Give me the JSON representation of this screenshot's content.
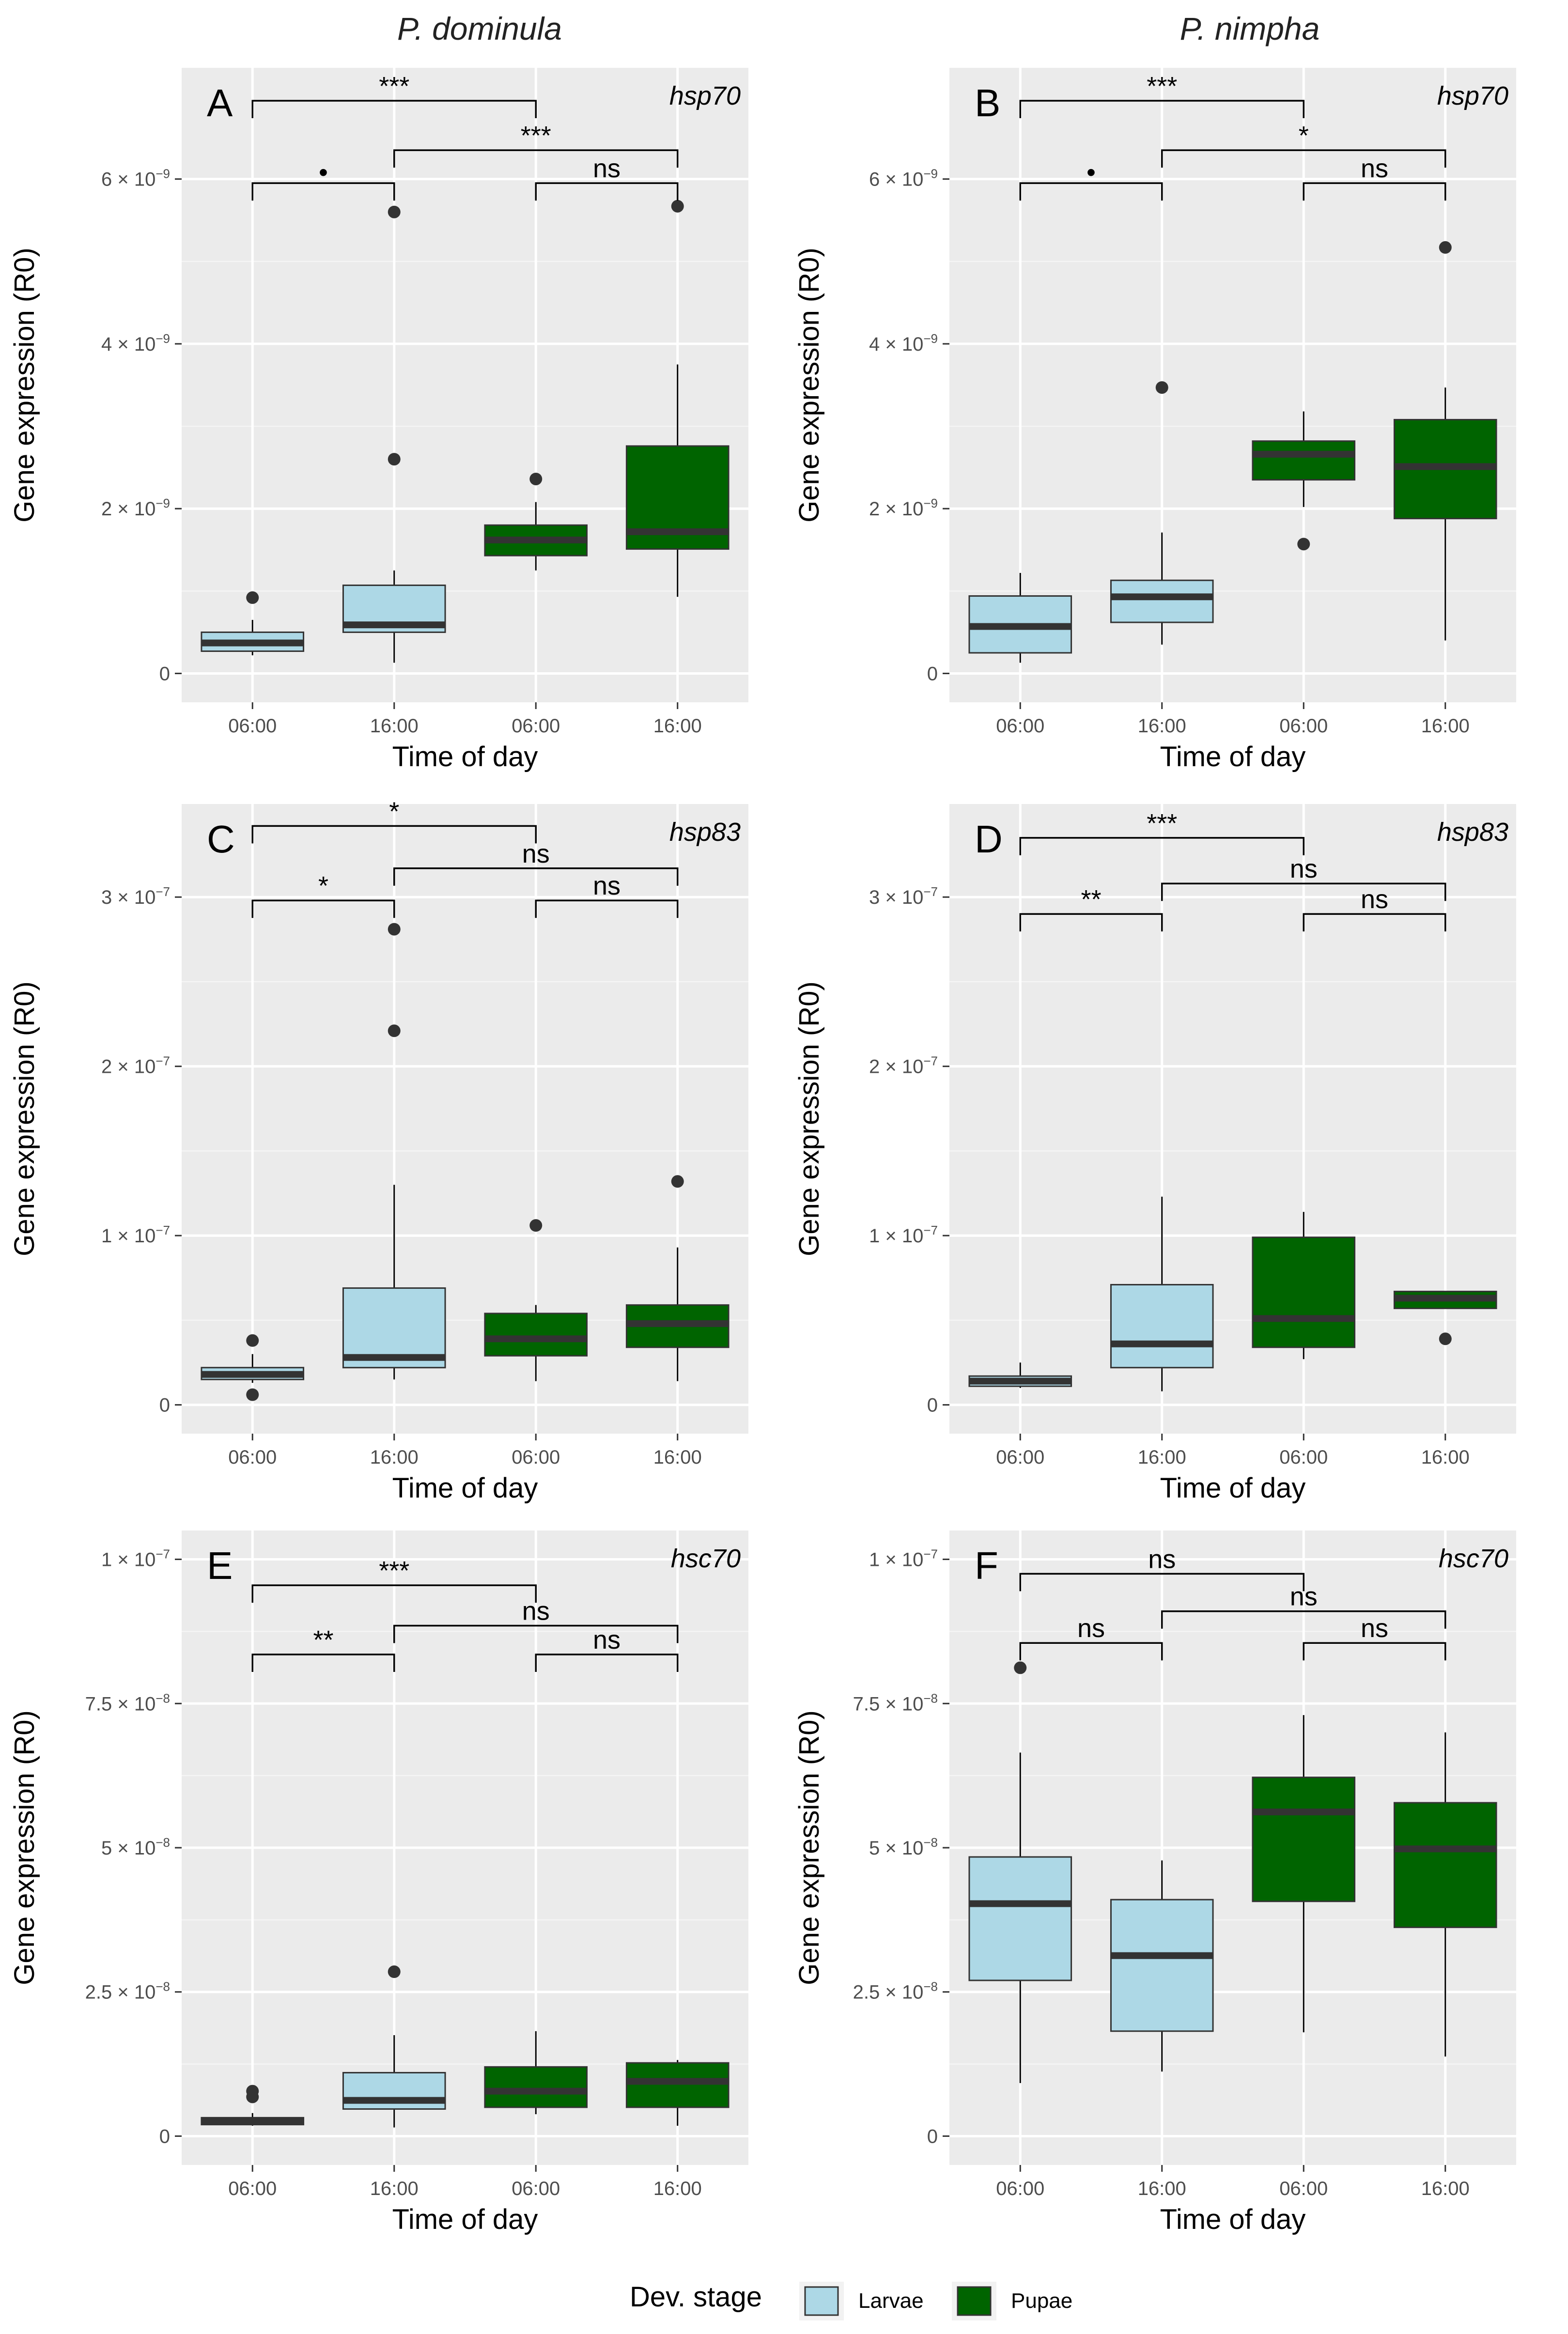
{
  "column_titles": [
    "P. dominula",
    "P. nimpha"
  ],
  "legend": {
    "title": "Dev. stage",
    "items": [
      {
        "label": "Larvae",
        "color": "#add8e6"
      },
      {
        "label": "Pupae",
        "color": "#006400"
      }
    ]
  },
  "colors": {
    "Larvae": "#add8e6",
    "Pupae": "#006400",
    "panel_bg": "#ebebeb"
  },
  "chart_data": [
    {
      "panel": "A",
      "gene": "hsp70",
      "species": "P. dominula",
      "type": "box",
      "xlabel": "Time of day",
      "ylabel": "Gene expression (R0)",
      "categories": [
        "06:00",
        "16:00",
        "06:00",
        "16:00"
      ],
      "groups": [
        "Larvae",
        "Larvae",
        "Pupae",
        "Pupae"
      ],
      "ylim": [
        -3.5e-10,
        7.35e-09
      ],
      "yticks": [
        {
          "v": 0,
          "m": "0",
          "e": ""
        },
        {
          "v": 2e-09,
          "m": "2 × 10",
          "e": "−9"
        },
        {
          "v": 4e-09,
          "m": "4 × 10",
          "e": "−9"
        },
        {
          "v": 6e-09,
          "m": "6 × 10",
          "e": "−9"
        }
      ],
      "boxes": [
        {
          "min": 2.2e-10,
          "q1": 2.7e-10,
          "median": 3.7e-10,
          "q3": 5e-10,
          "max": 6.5e-10,
          "outliers": [
            9.2e-10
          ]
        },
        {
          "min": 1.3e-10,
          "q1": 5e-10,
          "median": 5.9e-10,
          "q3": 1.07e-09,
          "max": 1.25e-09,
          "outliers": [
            5.6e-09,
            2.6e-09
          ]
        },
        {
          "min": 1.25e-09,
          "q1": 1.43e-09,
          "median": 1.62e-09,
          "q3": 1.8e-09,
          "max": 2.08e-09,
          "outliers": [
            2.36e-09
          ]
        },
        {
          "min": 9.3e-10,
          "q1": 1.51e-09,
          "median": 1.72e-09,
          "q3": 2.76e-09,
          "max": 3.75e-09,
          "outliers": [
            5.67e-09
          ]
        }
      ],
      "comparisons": [
        {
          "from": 0,
          "to": 2,
          "y": 6.95e-09,
          "label": "***"
        },
        {
          "from": 1,
          "to": 3,
          "y": 6.35e-09,
          "label": "***"
        },
        {
          "from": 0,
          "to": 1,
          "y": 5.95e-09,
          "label": "•"
        },
        {
          "from": 2,
          "to": 3,
          "y": 5.95e-09,
          "label": "ns"
        }
      ]
    },
    {
      "panel": "B",
      "gene": "hsp70",
      "species": "P. nimpha",
      "type": "box",
      "xlabel": "Time of day",
      "ylabel": "Gene expression (R0)",
      "categories": [
        "06:00",
        "16:00",
        "06:00",
        "16:00"
      ],
      "groups": [
        "Larvae",
        "Larvae",
        "Pupae",
        "Pupae"
      ],
      "ylim": [
        -3.5e-10,
        7.35e-09
      ],
      "yticks": [
        {
          "v": 0,
          "m": "0",
          "e": ""
        },
        {
          "v": 2e-09,
          "m": "2 × 10",
          "e": "−9"
        },
        {
          "v": 4e-09,
          "m": "4 × 10",
          "e": "−9"
        },
        {
          "v": 6e-09,
          "m": "6 × 10",
          "e": "−9"
        }
      ],
      "boxes": [
        {
          "min": 1.3e-10,
          "q1": 2.5e-10,
          "median": 5.7e-10,
          "q3": 9.4e-10,
          "max": 1.22e-09,
          "outliers": []
        },
        {
          "min": 3.5e-10,
          "q1": 6.2e-10,
          "median": 9.3e-10,
          "q3": 1.13e-09,
          "max": 1.71e-09,
          "outliers": [
            3.47e-09
          ]
        },
        {
          "min": 2.02e-09,
          "q1": 2.35e-09,
          "median": 2.66e-09,
          "q3": 2.82e-09,
          "max": 3.18e-09,
          "outliers": [
            1.57e-09
          ]
        },
        {
          "min": 4e-10,
          "q1": 1.88e-09,
          "median": 2.51e-09,
          "q3": 3.08e-09,
          "max": 3.47e-09,
          "outliers": [
            5.17e-09
          ]
        }
      ],
      "comparisons": [
        {
          "from": 0,
          "to": 2,
          "y": 6.95e-09,
          "label": "***"
        },
        {
          "from": 1,
          "to": 3,
          "y": 6.35e-09,
          "label": "*"
        },
        {
          "from": 0,
          "to": 1,
          "y": 5.95e-09,
          "label": "•"
        },
        {
          "from": 2,
          "to": 3,
          "y": 5.95e-09,
          "label": "ns"
        }
      ]
    },
    {
      "panel": "C",
      "gene": "hsp83",
      "species": "P. dominula",
      "type": "box",
      "xlabel": "Time of day",
      "ylabel": "Gene expression (R0)",
      "categories": [
        "06:00",
        "16:00",
        "06:00",
        "16:00"
      ],
      "groups": [
        "Larvae",
        "Larvae",
        "Pupae",
        "Pupae"
      ],
      "ylim": [
        -1.7e-08,
        3.55e-07
      ],
      "yticks": [
        {
          "v": 0,
          "m": "0",
          "e": ""
        },
        {
          "v": 1e-07,
          "m": "1 × 10",
          "e": "−7"
        },
        {
          "v": 2e-07,
          "m": "2 × 10",
          "e": "−7"
        },
        {
          "v": 3e-07,
          "m": "3 × 10",
          "e": "−7"
        }
      ],
      "boxes": [
        {
          "min": 1.3e-08,
          "q1": 1.5e-08,
          "median": 1.8e-08,
          "q3": 2.2e-08,
          "max": 3e-08,
          "outliers": [
            3.8e-08,
            6e-09
          ]
        },
        {
          "min": 1.5e-08,
          "q1": 2.2e-08,
          "median": 2.8e-08,
          "q3": 6.9e-08,
          "max": 1.3e-07,
          "outliers": [
            2.81e-07,
            2.21e-07
          ]
        },
        {
          "min": 1.4e-08,
          "q1": 2.9e-08,
          "median": 3.9e-08,
          "q3": 5.4e-08,
          "max": 5.9e-08,
          "outliers": [
            1.06e-07
          ]
        },
        {
          "min": 1.4e-08,
          "q1": 3.4e-08,
          "median": 4.8e-08,
          "q3": 5.9e-08,
          "max": 9.3e-08,
          "outliers": [
            1.32e-07
          ]
        }
      ],
      "comparisons": [
        {
          "from": 0,
          "to": 2,
          "y": 3.42e-07,
          "label": "*"
        },
        {
          "from": 1,
          "to": 3,
          "y": 3.17e-07,
          "label": "ns"
        },
        {
          "from": 0,
          "to": 1,
          "y": 2.98e-07,
          "label": "*"
        },
        {
          "from": 2,
          "to": 3,
          "y": 2.98e-07,
          "label": "ns"
        }
      ]
    },
    {
      "panel": "D",
      "gene": "hsp83",
      "species": "P. nimpha",
      "type": "box",
      "xlabel": "Time of day",
      "ylabel": "Gene expression (R0)",
      "categories": [
        "06:00",
        "16:00",
        "06:00",
        "16:00"
      ],
      "groups": [
        "Larvae",
        "Larvae",
        "Pupae",
        "Pupae"
      ],
      "ylim": [
        -1.7e-08,
        3.55e-07
      ],
      "yticks": [
        {
          "v": 0,
          "m": "0",
          "e": ""
        },
        {
          "v": 1e-07,
          "m": "1 × 10",
          "e": "−7"
        },
        {
          "v": 2e-07,
          "m": "2 × 10",
          "e": "−7"
        },
        {
          "v": 3e-07,
          "m": "3 × 10",
          "e": "−7"
        }
      ],
      "boxes": [
        {
          "min": 1e-08,
          "q1": 1.1e-08,
          "median": 1.4e-08,
          "q3": 1.7e-08,
          "max": 2.5e-08,
          "outliers": []
        },
        {
          "min": 8e-09,
          "q1": 2.2e-08,
          "median": 3.6e-08,
          "q3": 7.1e-08,
          "max": 1.23e-07,
          "outliers": []
        },
        {
          "min": 2.7e-08,
          "q1": 3.4e-08,
          "median": 5.1e-08,
          "q3": 9.9e-08,
          "max": 1.14e-07,
          "outliers": []
        },
        {
          "min": 5.7e-08,
          "q1": 5.7e-08,
          "median": 6.3e-08,
          "q3": 6.7e-08,
          "max": 6.7e-08,
          "outliers": [
            3.9e-08
          ]
        }
      ],
      "comparisons": [
        {
          "from": 0,
          "to": 2,
          "y": 3.35e-07,
          "label": "***"
        },
        {
          "from": 1,
          "to": 3,
          "y": 3.08e-07,
          "label": "ns"
        },
        {
          "from": 0,
          "to": 1,
          "y": 2.9e-07,
          "label": "**"
        },
        {
          "from": 2,
          "to": 3,
          "y": 2.9e-07,
          "label": "ns"
        }
      ]
    },
    {
      "panel": "E",
      "gene": "hsc70",
      "species": "P. dominula",
      "type": "box",
      "xlabel": "Time of day",
      "ylabel": "Gene expression (R0)",
      "categories": [
        "06:00",
        "16:00",
        "06:00",
        "16:00"
      ],
      "groups": [
        "Larvae",
        "Larvae",
        "Pupae",
        "Pupae"
      ],
      "ylim": [
        -5e-09,
        1.05e-07
      ],
      "yticks": [
        {
          "v": 0,
          "m": "0",
          "e": ""
        },
        {
          "v": 2.5e-08,
          "m": "2.5 × 10",
          "e": "−8"
        },
        {
          "v": 5e-08,
          "m": "5 × 10",
          "e": "−8"
        },
        {
          "v": 7.5e-08,
          "m": "7.5 × 10",
          "e": "−8"
        },
        {
          "v": 1e-07,
          "m": "1 × 10",
          "e": "−7"
        }
      ],
      "boxes": [
        {
          "min": 1.8e-09,
          "q1": 2e-09,
          "median": 2.6e-09,
          "q3": 3.2e-09,
          "max": 4e-09,
          "outliers": [
            7.8e-09,
            6.8e-09
          ]
        },
        {
          "min": 1.5e-09,
          "q1": 4.7e-09,
          "median": 6.2e-09,
          "q3": 1.1e-08,
          "max": 1.75e-08,
          "outliers": [
            2.85e-08
          ]
        },
        {
          "min": 3.8e-09,
          "q1": 5e-09,
          "median": 7.8e-09,
          "q3": 1.2e-08,
          "max": 1.82e-08,
          "outliers": []
        },
        {
          "min": 1.8e-09,
          "q1": 5e-09,
          "median": 9.5e-09,
          "q3": 1.27e-08,
          "max": 1.32e-08,
          "outliers": []
        }
      ],
      "comparisons": [
        {
          "from": 0,
          "to": 2,
          "y": 9.55e-08,
          "label": "***"
        },
        {
          "from": 1,
          "to": 3,
          "y": 8.85e-08,
          "label": "ns"
        },
        {
          "from": 0,
          "to": 1,
          "y": 8.35e-08,
          "label": "**"
        },
        {
          "from": 2,
          "to": 3,
          "y": 8.35e-08,
          "label": "ns"
        }
      ]
    },
    {
      "panel": "F",
      "gene": "hsc70",
      "species": "P. nimpha",
      "type": "box",
      "xlabel": "Time of day",
      "ylabel": "Gene expression (R0)",
      "categories": [
        "06:00",
        "16:00",
        "06:00",
        "16:00"
      ],
      "groups": [
        "Larvae",
        "Larvae",
        "Pupae",
        "Pupae"
      ],
      "ylim": [
        -5e-09,
        1.05e-07
      ],
      "yticks": [
        {
          "v": 0,
          "m": "0",
          "e": ""
        },
        {
          "v": 2.5e-08,
          "m": "2.5 × 10",
          "e": "−8"
        },
        {
          "v": 5e-08,
          "m": "5 × 10",
          "e": "−8"
        },
        {
          "v": 7.5e-08,
          "m": "7.5 × 10",
          "e": "−8"
        },
        {
          "v": 1e-07,
          "m": "1 × 10",
          "e": "−7"
        }
      ],
      "boxes": [
        {
          "min": 9.2e-09,
          "q1": 2.7e-08,
          "median": 4.03e-08,
          "q3": 4.84e-08,
          "max": 6.65e-08,
          "outliers": [
            8.12e-08
          ]
        },
        {
          "min": 1.12e-08,
          "q1": 1.82e-08,
          "median": 3.13e-08,
          "q3": 4.1e-08,
          "max": 4.78e-08,
          "outliers": []
        },
        {
          "min": 1.8e-08,
          "q1": 4.07e-08,
          "median": 5.62e-08,
          "q3": 6.22e-08,
          "max": 7.3e-08,
          "outliers": []
        },
        {
          "min": 1.38e-08,
          "q1": 3.62e-08,
          "median": 4.98e-08,
          "q3": 5.78e-08,
          "max": 7e-08,
          "outliers": []
        }
      ],
      "comparisons": [
        {
          "from": 0,
          "to": 2,
          "y": 9.75e-08,
          "label": "ns"
        },
        {
          "from": 1,
          "to": 3,
          "y": 9.1e-08,
          "label": "ns"
        },
        {
          "from": 0,
          "to": 1,
          "y": 8.55e-08,
          "label": "ns"
        },
        {
          "from": 2,
          "to": 3,
          "y": 8.55e-08,
          "label": "ns"
        }
      ]
    }
  ]
}
